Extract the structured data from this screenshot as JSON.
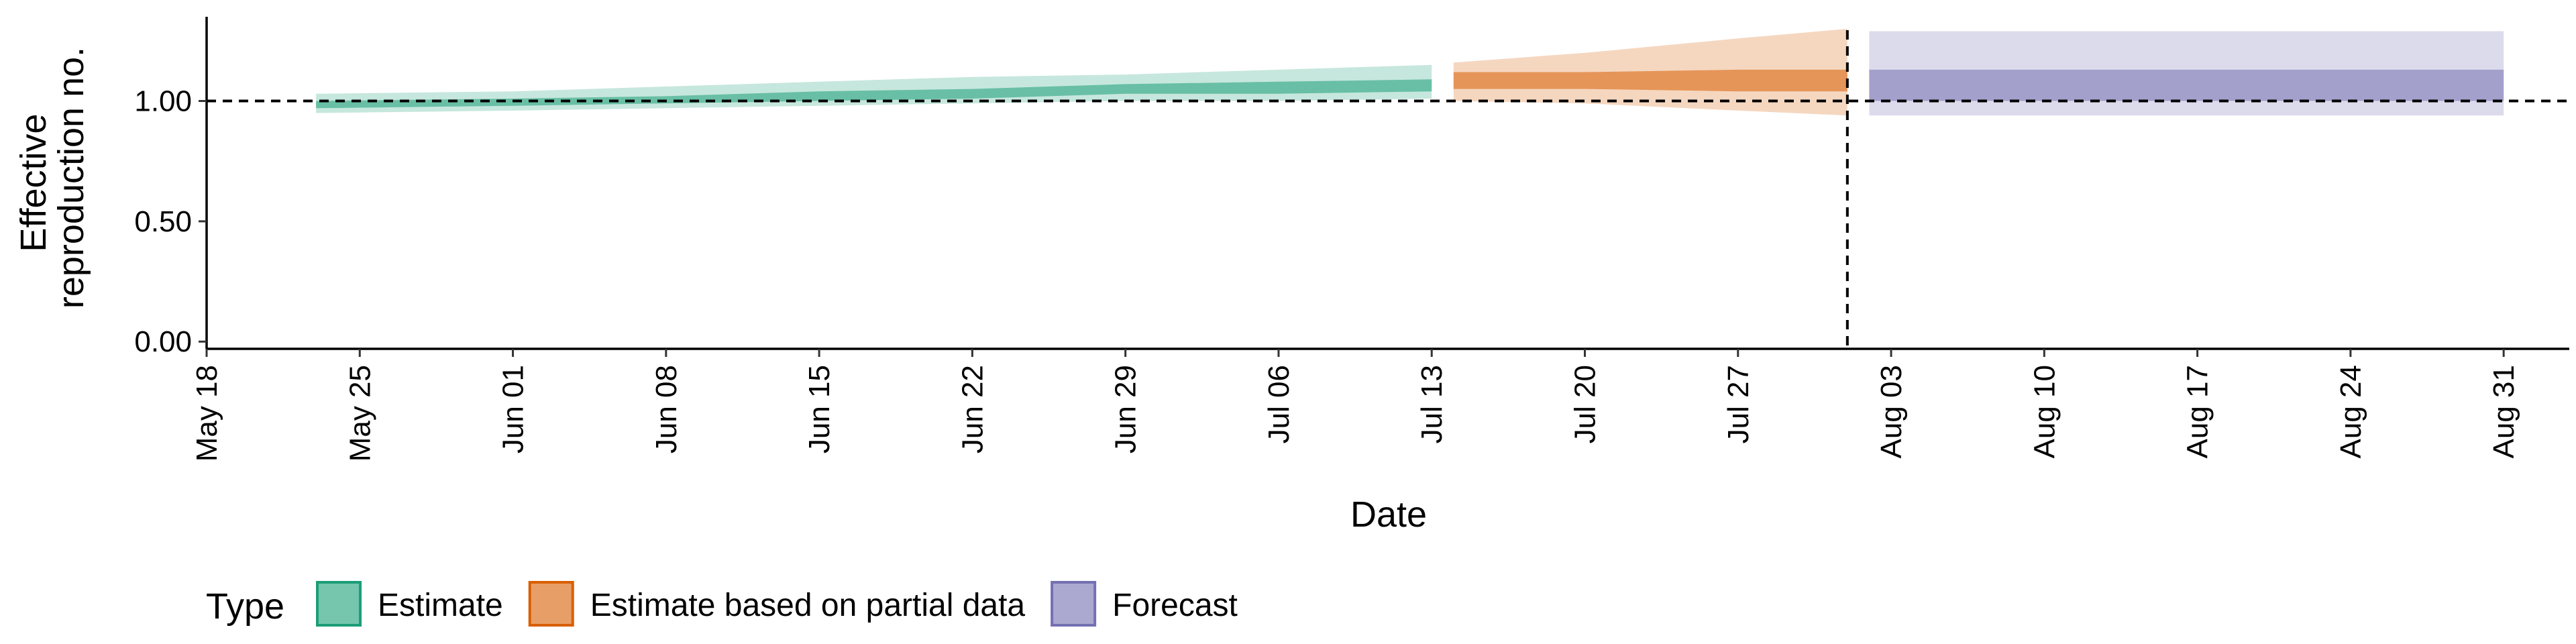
{
  "chart_data": {
    "type": "area",
    "title": "",
    "xlabel": "Date",
    "ylabel_lines": [
      "Effective",
      "reproduction no."
    ],
    "x_range": [
      "2020-05-18",
      "2020-09-03"
    ],
    "ylim": [
      -0.03,
      1.35
    ],
    "y_ticks": [
      {
        "value": 0.0,
        "label": "0.00"
      },
      {
        "value": 0.5,
        "label": "0.50"
      },
      {
        "value": 1.0,
        "label": "1.00"
      }
    ],
    "x_ticks": [
      {
        "date": "2020-05-18",
        "label": "May 18"
      },
      {
        "date": "2020-05-25",
        "label": "May 25"
      },
      {
        "date": "2020-06-01",
        "label": "Jun 01"
      },
      {
        "date": "2020-06-08",
        "label": "Jun 08"
      },
      {
        "date": "2020-06-15",
        "label": "Jun 15"
      },
      {
        "date": "2020-06-22",
        "label": "Jun 22"
      },
      {
        "date": "2020-06-29",
        "label": "Jun 29"
      },
      {
        "date": "2020-07-06",
        "label": "Jul 06"
      },
      {
        "date": "2020-07-13",
        "label": "Jul 13"
      },
      {
        "date": "2020-07-20",
        "label": "Jul 20"
      },
      {
        "date": "2020-07-27",
        "label": "Jul 27"
      },
      {
        "date": "2020-08-03",
        "label": "Aug 03"
      },
      {
        "date": "2020-08-10",
        "label": "Aug 10"
      },
      {
        "date": "2020-08-17",
        "label": "Aug 17"
      },
      {
        "date": "2020-08-24",
        "label": "Aug 24"
      },
      {
        "date": "2020-08-31",
        "label": "Aug 31"
      }
    ],
    "reference_hline": 1.0,
    "reference_vline": "2020-08-01",
    "grid": false,
    "legend": {
      "title": "Type",
      "placement": "bottom"
    },
    "series": [
      {
        "name": "Estimate",
        "color": "#1b9e77",
        "points": [
          {
            "date": "2020-05-23",
            "lo90": 0.95,
            "lo50": 0.97,
            "hi50": 1.0,
            "hi90": 1.03
          },
          {
            "date": "2020-06-01",
            "lo90": 0.96,
            "lo50": 0.98,
            "hi50": 1.01,
            "hi90": 1.04
          },
          {
            "date": "2020-06-08",
            "lo90": 0.97,
            "lo50": 0.99,
            "hi50": 1.02,
            "hi90": 1.06
          },
          {
            "date": "2020-06-15",
            "lo90": 0.98,
            "lo50": 1.0,
            "hi50": 1.04,
            "hi90": 1.08
          },
          {
            "date": "2020-06-22",
            "lo90": 0.99,
            "lo50": 1.01,
            "hi50": 1.05,
            "hi90": 1.1
          },
          {
            "date": "2020-06-29",
            "lo90": 1.0,
            "lo50": 1.03,
            "hi50": 1.07,
            "hi90": 1.11
          },
          {
            "date": "2020-07-06",
            "lo90": 1.0,
            "lo50": 1.03,
            "hi50": 1.08,
            "hi90": 1.13
          },
          {
            "date": "2020-07-13",
            "lo90": 1.01,
            "lo50": 1.04,
            "hi50": 1.09,
            "hi90": 1.15
          }
        ]
      },
      {
        "name": "Estimate based on partial data",
        "color": "#d95f02",
        "points": [
          {
            "date": "2020-07-14",
            "lo90": 1.0,
            "lo50": 1.05,
            "hi50": 1.12,
            "hi90": 1.16
          },
          {
            "date": "2020-07-20",
            "lo90": 0.99,
            "lo50": 1.05,
            "hi50": 1.12,
            "hi90": 1.2
          },
          {
            "date": "2020-07-27",
            "lo90": 0.96,
            "lo50": 1.04,
            "hi50": 1.13,
            "hi90": 1.26
          },
          {
            "date": "2020-08-01",
            "lo90": 0.94,
            "lo50": 1.04,
            "hi50": 1.13,
            "hi90": 1.3
          }
        ]
      },
      {
        "name": "Forecast",
        "color": "#7570b3",
        "points": [
          {
            "date": "2020-08-02",
            "lo90": 0.94,
            "lo50": 1.0,
            "hi50": 1.13,
            "hi90": 1.29
          },
          {
            "date": "2020-08-31",
            "lo90": 0.94,
            "lo50": 1.0,
            "hi50": 1.13,
            "hi90": 1.29
          }
        ]
      }
    ]
  }
}
